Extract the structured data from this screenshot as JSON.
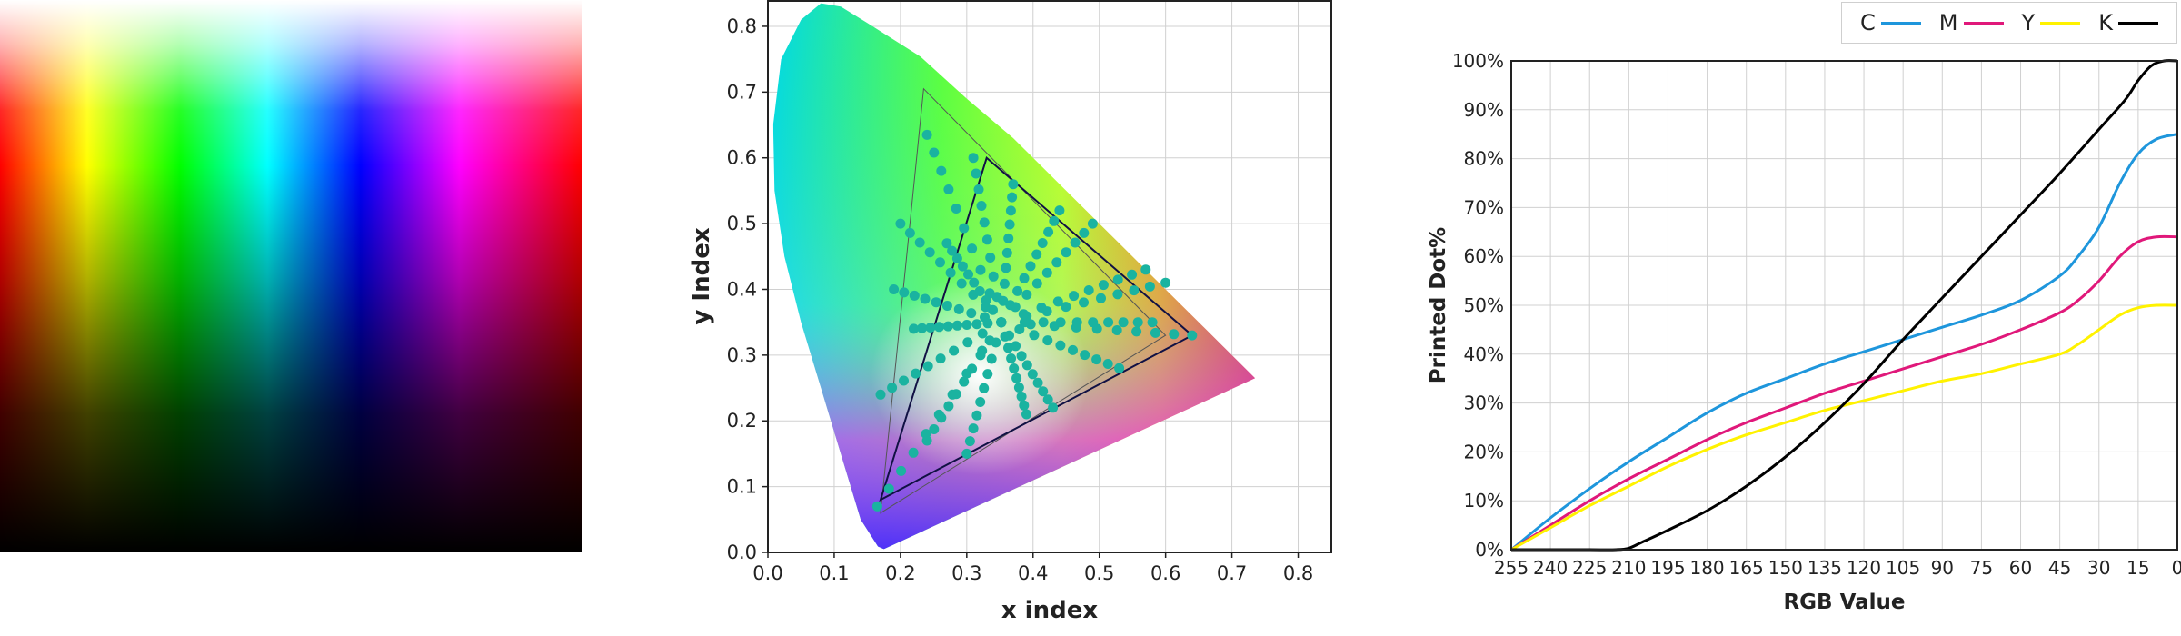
{
  "colors": {
    "cyan": "#1e96dc",
    "magenta": "#e0187a",
    "yellow": "#fff200",
    "black": "#000000",
    "dots": "#1ab3a0",
    "triangle_outer": "#555555",
    "triangle_inner": "#111144",
    "grid": "#d0d0d0"
  },
  "gradient_panel": {
    "description_icon": "color-gradient-image"
  },
  "chart_data": [
    {
      "type": "scatter",
      "title": "",
      "xlabel": "x index",
      "ylabel": "y Index",
      "xlim": [
        0.0,
        0.85
      ],
      "ylim": [
        0.0,
        0.84
      ],
      "xticks": [
        0.0,
        0.1,
        0.2,
        0.3,
        0.4,
        0.5,
        0.6,
        0.7,
        0.8
      ],
      "yticks": [
        0.0,
        0.1,
        0.2,
        0.3,
        0.4,
        0.5,
        0.6,
        0.7,
        0.8
      ],
      "xtick_labels": [
        "0.0",
        "0.1",
        "0.2",
        "0.3",
        "0.4",
        "0.5",
        "0.6",
        "0.7",
        "0.8"
      ],
      "ytick_labels": [
        "0.0",
        "0.1",
        "0.2",
        "0.3",
        "0.4",
        "0.5",
        "0.6",
        "0.7",
        "0.8"
      ],
      "grid": true,
      "spectral_locus": [
        [
          0.175,
          0.005
        ],
        [
          0.166,
          0.009
        ],
        [
          0.14,
          0.05
        ],
        [
          0.11,
          0.15
        ],
        [
          0.08,
          0.25
        ],
        [
          0.05,
          0.35
        ],
        [
          0.025,
          0.45
        ],
        [
          0.01,
          0.55
        ],
        [
          0.008,
          0.65
        ],
        [
          0.02,
          0.75
        ],
        [
          0.05,
          0.81
        ],
        [
          0.08,
          0.835
        ],
        [
          0.11,
          0.83
        ],
        [
          0.15,
          0.805
        ],
        [
          0.23,
          0.754
        ],
        [
          0.3,
          0.69
        ],
        [
          0.37,
          0.63
        ],
        [
          0.45,
          0.55
        ],
        [
          0.53,
          0.47
        ],
        [
          0.6,
          0.4
        ],
        [
          0.66,
          0.34
        ],
        [
          0.735,
          0.265
        ]
      ],
      "outer_gamut_triangle": [
        [
          0.17,
          0.06
        ],
        [
          0.235,
          0.705
        ],
        [
          0.6,
          0.33
        ]
      ],
      "inner_gamut_triangle": [
        [
          0.17,
          0.08
        ],
        [
          0.33,
          0.6
        ],
        [
          0.64,
          0.33
        ]
      ],
      "center_point": [
        0.352,
        0.35
      ],
      "dot_rays": [
        [
          0.24,
          0.635
        ],
        [
          0.2,
          0.5
        ],
        [
          0.19,
          0.4
        ],
        [
          0.165,
          0.07
        ],
        [
          0.17,
          0.24
        ],
        [
          0.3,
          0.15
        ],
        [
          0.39,
          0.21
        ],
        [
          0.53,
          0.28
        ],
        [
          0.64,
          0.33
        ],
        [
          0.6,
          0.41
        ],
        [
          0.49,
          0.5
        ],
        [
          0.31,
          0.6
        ],
        [
          0.27,
          0.47
        ],
        [
          0.22,
          0.34
        ],
        [
          0.24,
          0.17
        ],
        [
          0.43,
          0.22
        ],
        [
          0.58,
          0.35
        ],
        [
          0.57,
          0.43
        ],
        [
          0.44,
          0.52
        ],
        [
          0.37,
          0.56
        ]
      ]
    },
    {
      "type": "line",
      "title": "",
      "xlabel": "RGB Value",
      "ylabel": "Printed Dot%",
      "x_reversed": true,
      "xlim": [
        255,
        0
      ],
      "ylim": [
        0,
        100
      ],
      "grid": true,
      "legend_position": "top-right",
      "x_tick_values": [
        255,
        240,
        225,
        210,
        195,
        180,
        165,
        150,
        135,
        120,
        105,
        90,
        75,
        60,
        45,
        30,
        15,
        0
      ],
      "x_tick_labels": [
        "255",
        "240",
        "225",
        "210",
        "195",
        "180",
        "165",
        "150",
        "135",
        "120",
        "105",
        "90",
        "75",
        "60",
        "45",
        "30",
        "15",
        "0"
      ],
      "y_tick_values": [
        0,
        10,
        20,
        30,
        40,
        50,
        60,
        70,
        80,
        90,
        100
      ],
      "y_tick_labels": [
        "0%",
        "10%",
        "20%",
        "30%",
        "40%",
        "50%",
        "60%",
        "70%",
        "80%",
        "90%",
        "100%"
      ],
      "series": [
        {
          "name": "C",
          "color": "#1e96dc",
          "x": [
            255,
            240,
            225,
            210,
            195,
            180,
            165,
            150,
            135,
            120,
            105,
            90,
            75,
            60,
            45,
            38,
            30,
            22,
            15,
            8,
            0
          ],
          "y": [
            0,
            6.5,
            12.5,
            18,
            23,
            28,
            32,
            35,
            38,
            40.5,
            43,
            45.5,
            48,
            51,
            56,
            60,
            66,
            75,
            81,
            84,
            85
          ]
        },
        {
          "name": "M",
          "color": "#e0187a",
          "x": [
            255,
            240,
            225,
            210,
            195,
            180,
            165,
            150,
            135,
            120,
            105,
            90,
            75,
            60,
            45,
            38,
            30,
            22,
            15,
            8,
            0
          ],
          "y": [
            0,
            5,
            10,
            14.5,
            18.5,
            22.5,
            26,
            29,
            32,
            34.5,
            37,
            39.5,
            42,
            45,
            48.5,
            51,
            55,
            60,
            63,
            64,
            64
          ]
        },
        {
          "name": "Y",
          "color": "#fff200",
          "x": [
            255,
            240,
            225,
            210,
            195,
            180,
            165,
            150,
            135,
            120,
            105,
            90,
            75,
            60,
            45,
            38,
            30,
            22,
            15,
            8,
            0
          ],
          "y": [
            0,
            4.5,
            9,
            13,
            17,
            20.5,
            23.5,
            26,
            28.5,
            30.5,
            32.5,
            34.5,
            36,
            38,
            40,
            42,
            45,
            48,
            49.5,
            50,
            50
          ]
        },
        {
          "name": "K",
          "color": "#000000",
          "x": [
            255,
            240,
            225,
            215,
            210,
            205,
            195,
            180,
            165,
            150,
            135,
            120,
            105,
            90,
            75,
            60,
            45,
            30,
            20,
            15,
            10,
            5,
            0
          ],
          "y": [
            0,
            0,
            0,
            0,
            0.3,
            1.5,
            4,
            8,
            13,
            19,
            26,
            34,
            43,
            51.5,
            60,
            68.5,
            77,
            86,
            92,
            96,
            99,
            100,
            100
          ]
        }
      ]
    }
  ]
}
